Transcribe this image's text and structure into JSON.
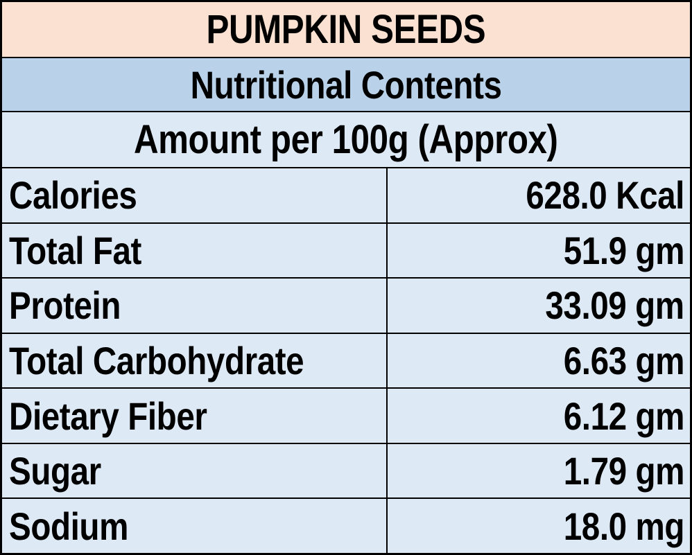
{
  "colors": {
    "title_bg": "#fbe1d2",
    "subtitle_bg": "#b9d2e9",
    "row_bg": "#dde9f5",
    "grid_border": "#000000",
    "text": "#000000"
  },
  "chart_data": {
    "type": "table",
    "title": "PUMPKIN SEEDS",
    "subtitle": "Nutritional Contents",
    "basis": "Amount per 100g (Approx)",
    "rows": [
      {
        "label": "Calories",
        "amount": 628.0,
        "unit": "Kcal",
        "display": "628.0 Kcal"
      },
      {
        "label": "Total Fat",
        "amount": 51.9,
        "unit": "gm",
        "display": "51.9 gm"
      },
      {
        "label": "Protein",
        "amount": 33.09,
        "unit": "gm",
        "display": "33.09 gm"
      },
      {
        "label": "Total Carbohydrate",
        "amount": 6.63,
        "unit": "gm",
        "display": "6.63 gm"
      },
      {
        "label": "Dietary Fiber",
        "amount": 6.12,
        "unit": "gm",
        "display": "6.12 gm"
      },
      {
        "label": "Sugar",
        "amount": 1.79,
        "unit": "gm",
        "display": "1.79 gm"
      },
      {
        "label": "Sodium",
        "amount": 18.0,
        "unit": "mg",
        "display": "18.0 mg"
      }
    ]
  }
}
